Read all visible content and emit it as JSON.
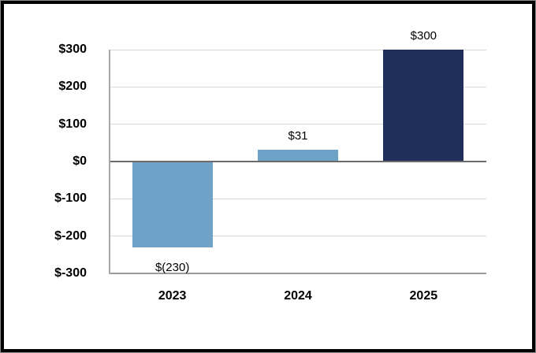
{
  "chart_data": {
    "type": "bar",
    "title": "",
    "xlabel": "",
    "ylabel": "",
    "categories": [
      "2023",
      "2024",
      "2025"
    ],
    "values": [
      -230,
      31,
      300
    ],
    "value_labels": [
      "$(230)",
      "$31",
      "$300"
    ],
    "bar_colors": [
      "#6FA2C7",
      "#6FA2C7",
      "#1F2E5A"
    ],
    "ylim": [
      -300,
      300
    ],
    "y_ticks": [
      300,
      200,
      100,
      0,
      -100,
      -200,
      -300
    ],
    "y_tick_labels": [
      "$300",
      "$200",
      "$100",
      "$0",
      "$-100",
      "$-200",
      "$-300"
    ],
    "grid": true,
    "legend": false,
    "gridline_color": "#D9D9D9",
    "zero_line_color": "#6B6B6B",
    "axis_line_color": "#A9A9A9",
    "axis_label_color": "#000000"
  }
}
